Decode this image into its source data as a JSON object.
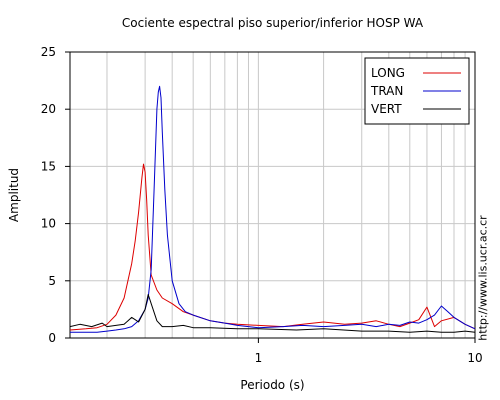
{
  "page": {
    "watermark": "http://www.lis.ucr.ac.cr"
  },
  "chart_data": {
    "type": "line",
    "title": "Cociente espectral piso superior/inferior  HOSP WA",
    "xlabel": "Periodo (s)",
    "ylabel": "Amplitud",
    "xscale": "log",
    "xlim": [
      0.135,
      10
    ],
    "ylim": [
      0,
      25
    ],
    "x_ticks": [
      {
        "value": 1,
        "label": "1"
      },
      {
        "value": 10,
        "label": "10"
      }
    ],
    "y_ticks": [
      {
        "value": 0,
        "label": "0"
      },
      {
        "value": 5,
        "label": "5"
      },
      {
        "value": 10,
        "label": "10"
      },
      {
        "value": 15,
        "label": "15"
      },
      {
        "value": 20,
        "label": "20"
      },
      {
        "value": 25,
        "label": "25"
      }
    ],
    "grid": true,
    "legend_position": "top-right",
    "series": [
      {
        "name": "LONG",
        "color": "#dd0000",
        "x": [
          0.135,
          0.16,
          0.18,
          0.2,
          0.22,
          0.24,
          0.26,
          0.27,
          0.28,
          0.29,
          0.295,
          0.3,
          0.305,
          0.31,
          0.32,
          0.34,
          0.36,
          0.4,
          0.45,
          0.5,
          0.6,
          0.7,
          0.8,
          1.0,
          1.3,
          1.6,
          2.0,
          2.5,
          3.0,
          3.5,
          4.0,
          4.5,
          5.0,
          5.5,
          6.0,
          6.5,
          7.0,
          8.0,
          9.0,
          10.0
        ],
        "y": [
          0.7,
          0.8,
          0.9,
          1.2,
          2.0,
          3.5,
          6.5,
          8.5,
          11.0,
          14.0,
          15.2,
          14.5,
          12.0,
          9.0,
          5.5,
          4.2,
          3.5,
          3.0,
          2.3,
          2.0,
          1.5,
          1.3,
          1.2,
          1.1,
          1.0,
          1.2,
          1.4,
          1.2,
          1.3,
          1.5,
          1.2,
          1.0,
          1.3,
          1.6,
          2.7,
          1.0,
          1.5,
          1.8,
          1.2,
          0.8
        ]
      },
      {
        "name": "TRAN",
        "color": "#0000cc",
        "x": [
          0.135,
          0.16,
          0.18,
          0.2,
          0.22,
          0.24,
          0.26,
          0.28,
          0.3,
          0.31,
          0.32,
          0.33,
          0.34,
          0.345,
          0.35,
          0.355,
          0.36,
          0.37,
          0.38,
          0.4,
          0.43,
          0.46,
          0.5,
          0.6,
          0.7,
          0.8,
          1.0,
          1.3,
          1.6,
          2.0,
          2.5,
          3.0,
          3.5,
          4.0,
          4.5,
          5.0,
          5.5,
          6.0,
          6.5,
          7.0,
          7.5,
          8.0,
          9.0,
          10.0
        ],
        "y": [
          0.5,
          0.5,
          0.5,
          0.6,
          0.7,
          0.8,
          1.0,
          1.5,
          2.5,
          3.5,
          6.0,
          13.0,
          20.0,
          21.5,
          22.0,
          21.0,
          18.0,
          13.0,
          9.0,
          5.0,
          3.0,
          2.3,
          2.0,
          1.5,
          1.3,
          1.1,
          0.9,
          1.0,
          1.1,
          1.0,
          1.1,
          1.2,
          1.0,
          1.2,
          1.1,
          1.4,
          1.3,
          1.6,
          2.0,
          2.8,
          2.3,
          1.8,
          1.2,
          0.8
        ]
      },
      {
        "name": "VERT",
        "color": "#000000",
        "x": [
          0.135,
          0.15,
          0.17,
          0.19,
          0.2,
          0.22,
          0.24,
          0.26,
          0.27,
          0.28,
          0.3,
          0.31,
          0.32,
          0.34,
          0.36,
          0.4,
          0.45,
          0.5,
          0.6,
          0.8,
          1.0,
          1.5,
          2.0,
          3.0,
          4.0,
          5.0,
          6.0,
          7.0,
          8.0,
          9.0,
          10.0
        ],
        "y": [
          1.0,
          1.2,
          1.0,
          1.3,
          1.0,
          1.1,
          1.2,
          1.8,
          1.6,
          1.4,
          2.5,
          3.8,
          3.0,
          1.5,
          1.0,
          1.0,
          1.1,
          0.9,
          0.9,
          0.8,
          0.8,
          0.7,
          0.8,
          0.6,
          0.6,
          0.5,
          0.6,
          0.5,
          0.5,
          0.6,
          0.5
        ]
      }
    ]
  }
}
